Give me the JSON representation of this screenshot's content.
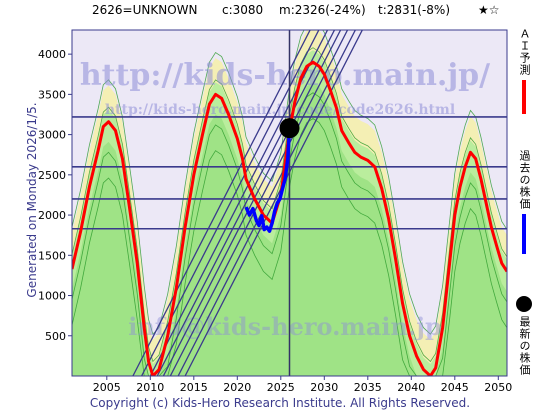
{
  "header": {
    "code_name": "2626=UNKNOWN",
    "current": "c:3080",
    "min": "m:2326(-24%)",
    "target": "t:2831(-8%)",
    "stars": "★☆"
  },
  "side_note": "Generated on Monday 2026/1/5.",
  "footer": "Copyright (c) Kids-Hero Research Institute. All Rights Reserved.",
  "watermarks": {
    "main": "http://kids-hero.main.jp/",
    "sub": "http://kids-hero.main.jp/code/code2626.html",
    "bottom": "info@kids-hero.main.jp"
  },
  "legend": [
    {
      "label": "ＡＩ予測",
      "color": "#ff0000",
      "kind": "line"
    },
    {
      "label": "過去の株価",
      "color": "#0000ff",
      "kind": "line"
    },
    {
      "label": "最新の株価",
      "color": "#000000",
      "kind": "dot"
    }
  ],
  "chart_data": {
    "type": "line",
    "title": "",
    "xlabel": "",
    "ylabel": "",
    "xlim": [
      2001,
      2051
    ],
    "ylim": [
      0,
      4300
    ],
    "x_ticks": [
      2005,
      2010,
      2015,
      2020,
      2025,
      2030,
      2035,
      2040,
      2045,
      2050
    ],
    "y_ticks": [
      500,
      1000,
      1500,
      2000,
      2500,
      3000,
      3500,
      4000
    ],
    "grid": false,
    "horizontal_lines": [
      3220,
      2600,
      2200,
      1830
    ],
    "latest_point": {
      "x": 2026.0,
      "y": 3080
    },
    "series": [
      {
        "name": "ＡＩ予測",
        "color": "#ff0000",
        "x": [
          2001,
          2002,
          2003,
          2004,
          2004.6,
          2005.2,
          2006,
          2006.8,
          2007.6,
          2008.5,
          2009.3,
          2009.8,
          2010.3,
          2011,
          2012,
          2013,
          2014,
          2015,
          2016,
          2016.8,
          2017.5,
          2018.2,
          2019,
          2020,
          2020.6,
          2021,
          2022,
          2023,
          2024,
          2025,
          2026,
          2026.6,
          2027.3,
          2028,
          2028.7,
          2029.4,
          2030,
          2030.7,
          2031.4,
          2032,
          2032.8,
          2033.5,
          2034.2,
          2035,
          2035.8,
          2036.6,
          2037.4,
          2038.2,
          2039,
          2039.8,
          2040.6,
          2041.4,
          2042.2,
          2042.8,
          2043.6,
          2044.4,
          2045,
          2045.6,
          2046.2,
          2046.8,
          2047.4,
          2048,
          2048.6,
          2049.2,
          2049.8,
          2050.4,
          2051
        ],
        "y": [
          1330,
          1800,
          2350,
          2800,
          3100,
          3160,
          3050,
          2700,
          2100,
          1400,
          600,
          180,
          0,
          80,
          500,
          1100,
          1850,
          2500,
          3000,
          3380,
          3500,
          3450,
          3250,
          2950,
          2700,
          2450,
          2200,
          2000,
          1900,
          2250,
          3050,
          3400,
          3700,
          3850,
          3900,
          3850,
          3750,
          3550,
          3330,
          3050,
          2900,
          2780,
          2720,
          2680,
          2600,
          2330,
          1950,
          1450,
          900,
          500,
          250,
          80,
          0,
          100,
          600,
          1400,
          2000,
          2350,
          2600,
          2780,
          2700,
          2450,
          2150,
          1850,
          1620,
          1400,
          1300
        ]
      },
      {
        "name": "過去の株価",
        "color": "#0000ff",
        "x": [
          2021,
          2021.4,
          2021.8,
          2022.2,
          2022.5,
          2022.8,
          2023.1,
          2023.4,
          2023.7,
          2024,
          2024.3,
          2024.6,
          2024.9,
          2025.2,
          2025.5,
          2025.8,
          2026.0
        ],
        "y": [
          2100,
          2000,
          2080,
          1930,
          1870,
          1990,
          1820,
          1850,
          1800,
          1900,
          2050,
          2150,
          2200,
          2330,
          2450,
          2700,
          3080
        ]
      }
    ]
  }
}
